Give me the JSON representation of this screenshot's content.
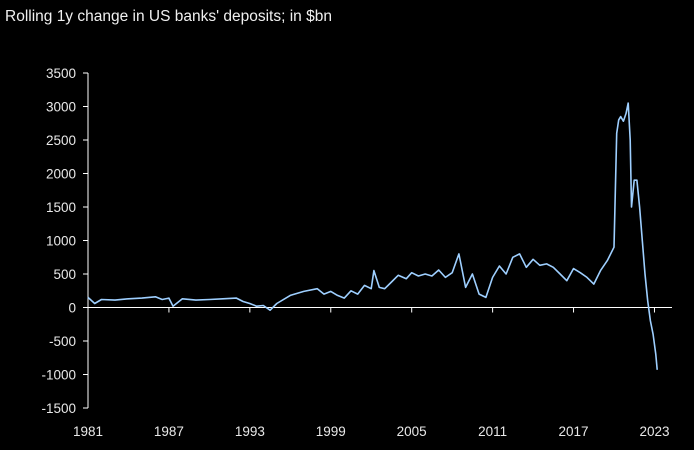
{
  "chart_data": {
    "type": "line",
    "title": "Rolling 1y change in US banks' deposits; in $bn",
    "xlabel": "",
    "ylabel": "",
    "ylim": [
      -1500,
      3500
    ],
    "yticks": [
      3500,
      3000,
      2500,
      2000,
      1500,
      1000,
      500,
      0,
      -500,
      -1000,
      -1500
    ],
    "xlim": [
      1981,
      2024.3
    ],
    "xticks": [
      "1981",
      "1987",
      "1993",
      "1999",
      "2005",
      "2011",
      "2017",
      "2023"
    ],
    "grid": false,
    "colors": {
      "series": "#9ecfff",
      "background": "#000000",
      "axis": "#ffffff"
    },
    "series": [
      {
        "x": [
          1981.0,
          1981.5,
          1982.0,
          1983.0,
          1984.0,
          1985.0,
          1986.0,
          1986.5,
          1987.0,
          1987.3,
          1988.0,
          1989.0,
          1990.0,
          1991.0,
          1992.0,
          1992.5,
          1993.0,
          1993.5,
          1994.0,
          1994.5,
          1995.0,
          1996.0,
          1997.0,
          1998.0,
          1998.5,
          1999.0,
          1999.5,
          2000.0,
          2000.5,
          2001.0,
          2001.5,
          2002.0,
          2002.2,
          2002.6,
          2003.0,
          2003.5,
          2004.0,
          2004.6,
          2005.0,
          2005.5,
          2006.0,
          2006.5,
          2007.0,
          2007.5,
          2008.0,
          2008.5,
          2009.0,
          2009.5,
          2010.0,
          2010.5,
          2011.0,
          2011.5,
          2012.0,
          2012.5,
          2013.0,
          2013.5,
          2014.0,
          2014.5,
          2015.0,
          2015.5,
          2016.0,
          2016.5,
          2017.0,
          2017.5,
          2018.0,
          2018.5,
          2019.0,
          2019.5,
          2020.0,
          2020.2,
          2020.35,
          2020.5,
          2020.7,
          2020.9,
          2021.05,
          2021.2,
          2021.3,
          2021.5,
          2021.7,
          2021.9,
          2022.1,
          2022.3,
          2022.5,
          2022.7,
          2022.9,
          2023.1,
          2023.2
        ],
        "values": [
          150,
          60,
          120,
          110,
          130,
          140,
          160,
          120,
          140,
          20,
          130,
          110,
          120,
          130,
          140,
          90,
          60,
          20,
          30,
          -40,
          60,
          180,
          240,
          280,
          200,
          240,
          180,
          140,
          250,
          200,
          330,
          280,
          550,
          300,
          280,
          380,
          480,
          430,
          520,
          470,
          500,
          470,
          560,
          450,
          520,
          800,
          300,
          500,
          200,
          150,
          450,
          620,
          500,
          750,
          800,
          600,
          720,
          630,
          650,
          600,
          500,
          400,
          580,
          520,
          450,
          350,
          550,
          700,
          900,
          2600,
          2800,
          2850,
          2780,
          2900,
          3050,
          2500,
          1500,
          1900,
          1900,
          1500,
          1000,
          500,
          100,
          -200,
          -400,
          -700,
          -930
        ]
      }
    ]
  }
}
